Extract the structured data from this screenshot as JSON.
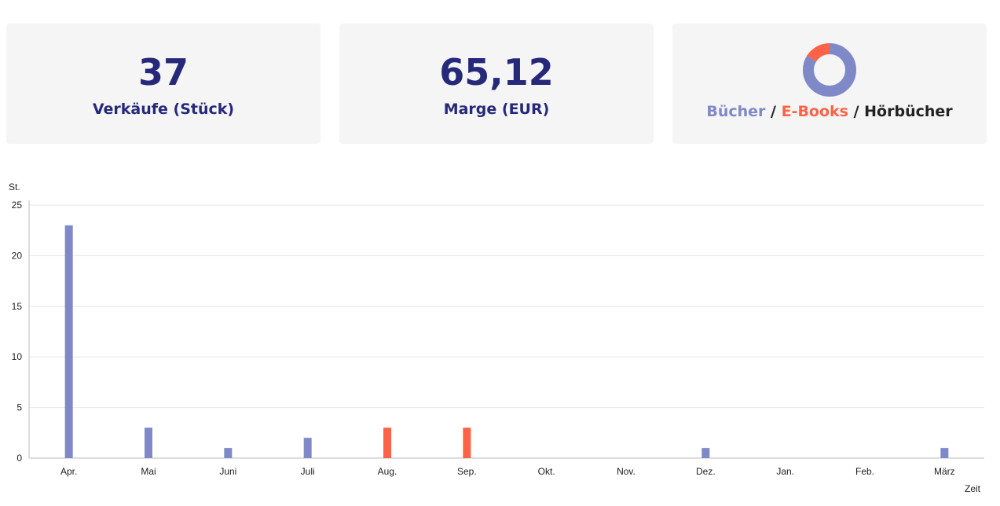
{
  "cards": {
    "sales": {
      "value": "37",
      "label": "Verkäufe (Stück)"
    },
    "margin": {
      "value": "65,12",
      "label": "Marge (EUR)"
    },
    "types": {
      "donut_values": [
        31,
        6,
        0
      ],
      "items": [
        {
          "label": "Bücher",
          "color": "#7f89c8"
        },
        {
          "label": "E-Books",
          "color": "#ff6347"
        },
        {
          "label": "Hörbücher",
          "color": "#222222"
        }
      ],
      "separator": " / "
    }
  },
  "chart_data": {
    "type": "bar",
    "xlabel": "Zeit",
    "ylabel": "St.",
    "ylim": [
      0,
      25
    ],
    "yticks": [
      0,
      5,
      10,
      15,
      20,
      25
    ],
    "categories": [
      "Apr.",
      "Mai",
      "Juni",
      "Juli",
      "Aug.",
      "Sep.",
      "Okt.",
      "Nov.",
      "Dez.",
      "Jan.",
      "Feb.",
      "März"
    ],
    "series": [
      {
        "name": "Bücher",
        "color": "#7f89c8",
        "values": [
          23,
          3,
          1,
          2,
          0,
          0,
          0,
          0,
          1,
          0,
          0,
          1
        ]
      },
      {
        "name": "E-Books",
        "color": "#ff6347",
        "values": [
          0,
          0,
          0,
          0,
          3,
          3,
          0,
          0,
          0,
          0,
          0,
          0
        ]
      }
    ],
    "grid": true
  }
}
